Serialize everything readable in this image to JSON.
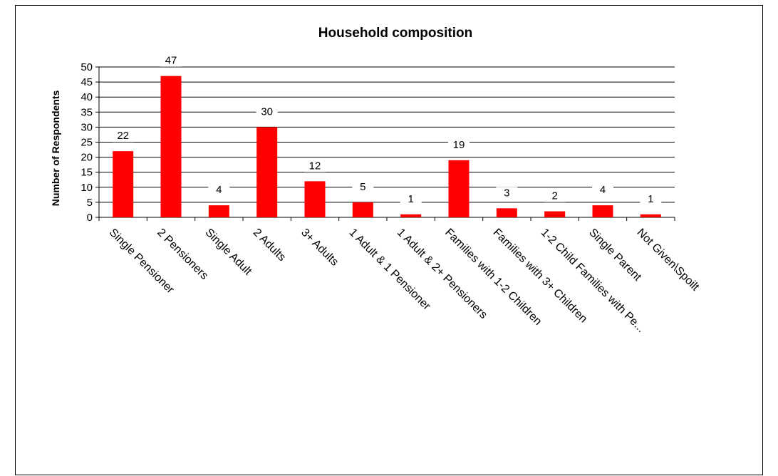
{
  "chart_data": {
    "type": "bar",
    "title": "Household composition",
    "xlabel": "",
    "ylabel": "Number of Respondents",
    "ylim": [
      0,
      50
    ],
    "yticks": [
      0,
      5,
      10,
      15,
      20,
      25,
      30,
      35,
      40,
      45,
      50
    ],
    "grid": true,
    "legend": "none",
    "bar_color": "#ff0000",
    "categories": [
      "Single Pensioner",
      "2 Pensioners",
      "Single Adult",
      "2 Adults",
      "3+ Adults",
      "1 Adult & 1 Pensioner",
      "1 Adult & 2+ Pensioners",
      "Families with 1-2 Children",
      "Families with 3+ Children",
      "1-2 Child Families with Pe...",
      "Single Parent",
      "Not Given\\Spoilt"
    ],
    "values": [
      22,
      47,
      4,
      30,
      12,
      5,
      1,
      19,
      3,
      2,
      4,
      1
    ]
  }
}
